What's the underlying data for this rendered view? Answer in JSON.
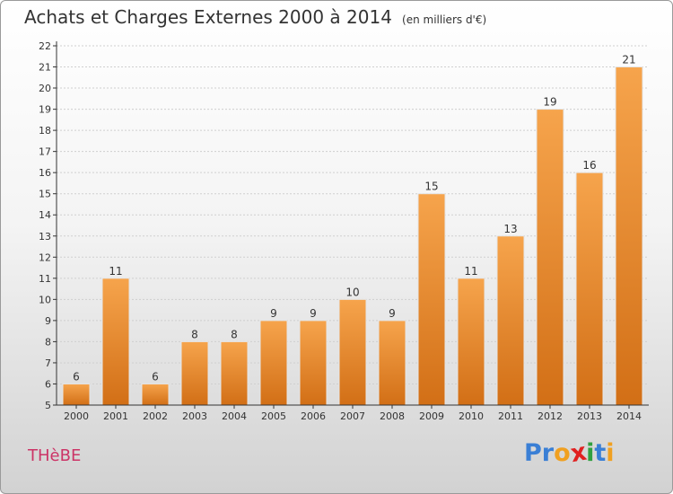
{
  "header": {
    "title": "Achats et Charges Externes 2000 à 2014",
    "subtitle": "(en milliers d'€)"
  },
  "commune": "THèBE",
  "logo": {
    "text": "Proxiti",
    "letters": [
      {
        "char": "P",
        "color": "#3a7fd5"
      },
      {
        "char": "r",
        "color": "#3a7fd5"
      },
      {
        "char": "o",
        "color": "#f0a020"
      },
      {
        "char": "x",
        "color": "#e02020"
      },
      {
        "char": "i",
        "color": "#30a040"
      },
      {
        "char": "t",
        "color": "#3a7fd5"
      },
      {
        "char": "i",
        "color": "#f0a020"
      }
    ]
  },
  "colors": {
    "bar_top": "#f6a44c",
    "bar_bottom": "#d26f16",
    "bar_edge": "#e6e6e6",
    "axis": "#333333",
    "grid": "#cfcfcf"
  },
  "chart_data": {
    "type": "bar",
    "title": "Achats et Charges Externes 2000 à 2014",
    "subtitle": "(en milliers d'€)",
    "xlabel": "",
    "ylabel": "",
    "categories": [
      "2000",
      "2001",
      "2002",
      "2003",
      "2004",
      "2005",
      "2006",
      "2007",
      "2008",
      "2009",
      "2010",
      "2011",
      "2012",
      "2013",
      "2014"
    ],
    "values": [
      6,
      11,
      6,
      8,
      8,
      9,
      9,
      10,
      9,
      15,
      11,
      13,
      19,
      16,
      21
    ],
    "ylim": [
      5,
      22
    ],
    "yticks": [
      5,
      6,
      7,
      8,
      9,
      10,
      11,
      12,
      13,
      14,
      15,
      16,
      17,
      18,
      19,
      20,
      21,
      22
    ],
    "grid": true,
    "legend": "none"
  }
}
